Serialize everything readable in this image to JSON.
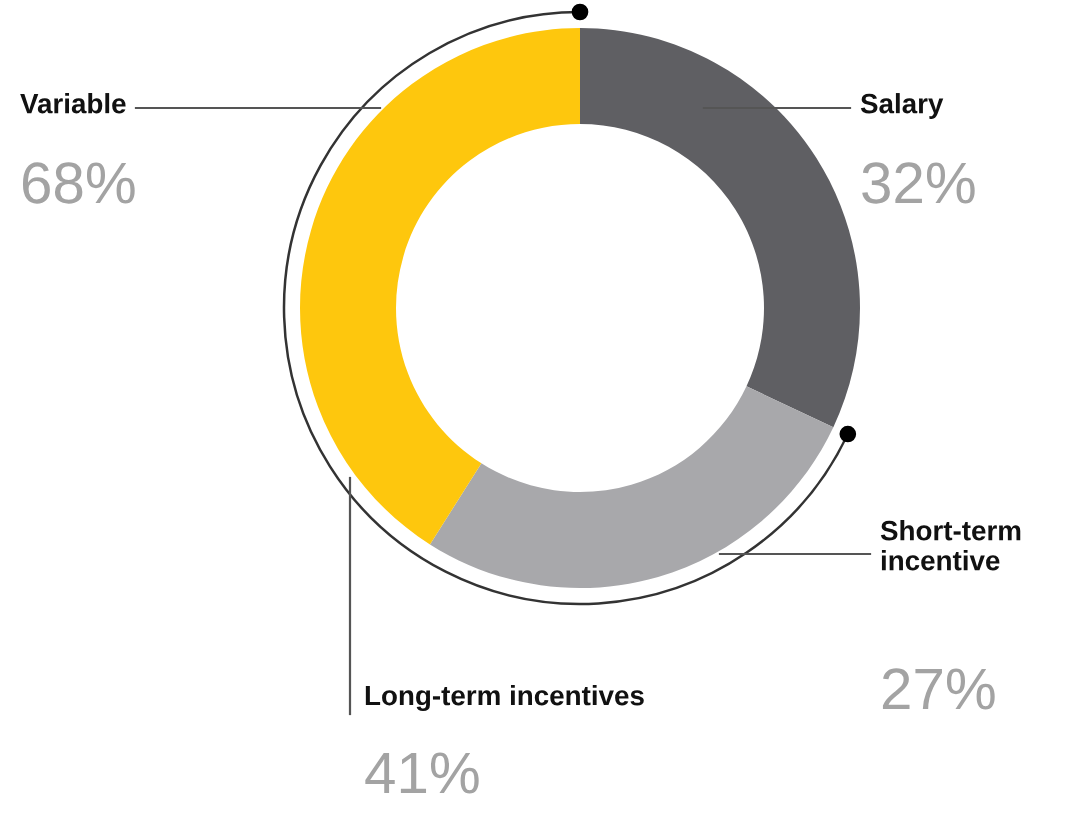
{
  "chart_data": {
    "type": "donut",
    "categories": [
      "Salary",
      "Short-term\nincentive",
      "Long-term incentives"
    ],
    "values": [
      32,
      27,
      41
    ],
    "colors": [
      "#5f5f63",
      "#a8a8ab",
      "#fec70d"
    ],
    "value_labels": [
      "32%",
      "27%",
      "41%"
    ],
    "annotations": [
      "Variable",
      "68%"
    ],
    "legend": false
  }
}
